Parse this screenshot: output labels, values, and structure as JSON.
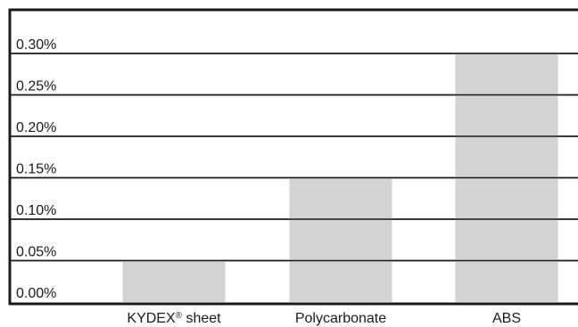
{
  "chart_data": {
    "type": "bar",
    "categories": [
      "KYDEX® sheet",
      "Polycarbonate",
      "ABS"
    ],
    "values": [
      0.05,
      0.15,
      0.3
    ],
    "y_ticks": [
      "0.00%",
      "0.05%",
      "0.10%",
      "0.15%",
      "0.20%",
      "0.25%",
      "0.30%"
    ],
    "ylim": [
      0,
      0.3
    ],
    "grid": true,
    "bar_color": "#d3d3d3",
    "grid_color": "#1a1a1a"
  }
}
